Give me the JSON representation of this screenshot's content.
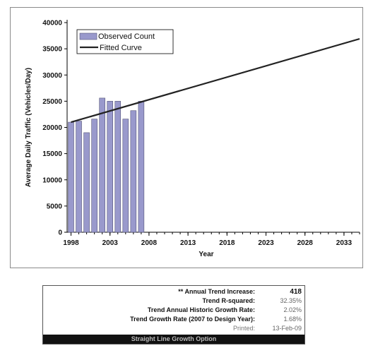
{
  "chart_data": {
    "type": "bar",
    "ylabel": "Average Daily Traffic (Vehicles/Day)",
    "xlabel": "Year",
    "ylim": [
      0,
      40000
    ],
    "yticks": [
      0,
      5000,
      10000,
      15000,
      20000,
      25000,
      30000,
      35000,
      40000
    ],
    "xlim": [
      1997.5,
      2035
    ],
    "xticks": [
      1998,
      2003,
      2008,
      2013,
      2018,
      2023,
      2028,
      2033
    ],
    "legend_position": "top-left",
    "series": [
      {
        "name": "Observed Count",
        "type": "bar",
        "color": "#9999cc",
        "x": [
          1998,
          1999,
          2000,
          2001,
          2002,
          2003,
          2004,
          2005,
          2006,
          2007
        ],
        "values": [
          21000,
          21200,
          19000,
          21600,
          25600,
          25000,
          25000,
          21600,
          23200,
          25000
        ]
      },
      {
        "name": "Fitted Curve",
        "type": "line",
        "color": "#222222",
        "x": [
          1998,
          2035
        ],
        "values": [
          21000,
          36900
        ]
      }
    ]
  },
  "stats": {
    "rows": [
      {
        "label": "** Annual Trend Increase:",
        "value": "418"
      },
      {
        "label": "Trend R-squared:",
        "value": "32.35%"
      },
      {
        "label": "Trend Annual Historic Growth Rate:",
        "value": "2.02%"
      },
      {
        "label": "Trend Growth Rate (2007 to Design Year):",
        "value": "1.68%"
      },
      {
        "label": "Printed:",
        "value": "13-Feb-09"
      }
    ],
    "footer": "Straight Line Growth Option"
  }
}
